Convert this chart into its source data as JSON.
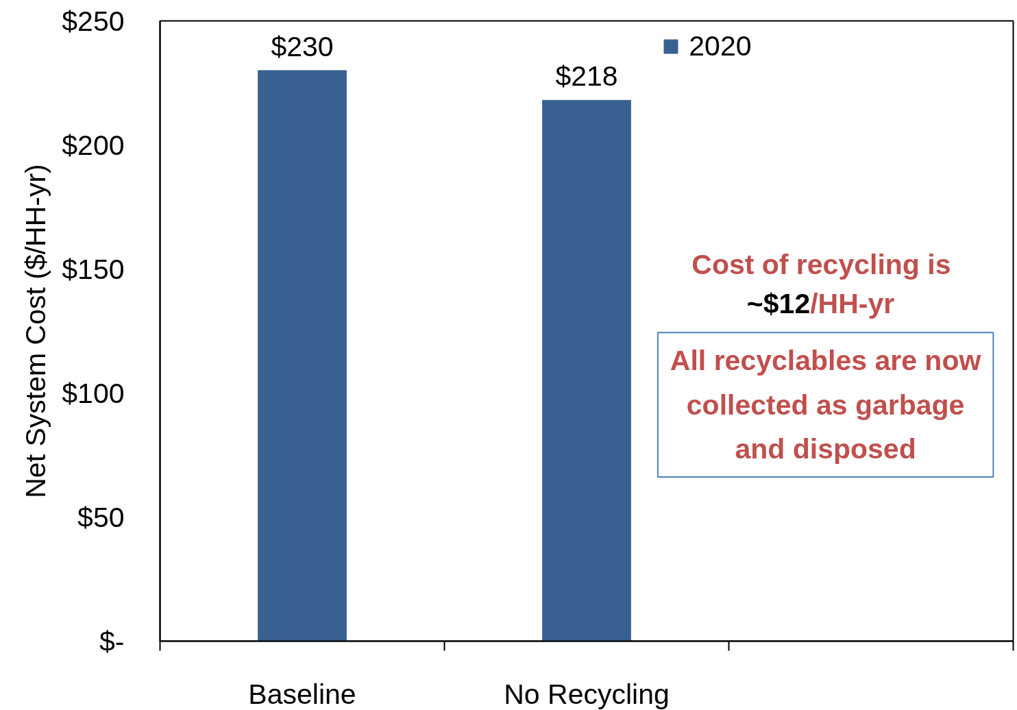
{
  "chart_data": {
    "type": "bar",
    "categories": [
      "Baseline",
      "No Recycling",
      null
    ],
    "series": [
      {
        "name": "2020",
        "color": "#386192",
        "values": [
          230,
          218,
          null
        ],
        "value_labels": [
          "$230",
          "$218",
          null
        ]
      }
    ],
    "ylabel": "Net System Cost ($/HH-yr)",
    "ylim": [
      0,
      250
    ],
    "yticks": [
      {
        "value": 0,
        "label": "$-"
      },
      {
        "value": 50,
        "label": "$50"
      },
      {
        "value": 100,
        "label": "$100"
      },
      {
        "value": 150,
        "label": "$150"
      },
      {
        "value": 200,
        "label": "$200"
      },
      {
        "value": 250,
        "label": "$250"
      }
    ],
    "legend": "top right",
    "grid": false,
    "annotations": [
      "Cost of recycling is",
      "~$12",
      "/HH-yr",
      "All recyclables are now collected as garbage and disposed"
    ]
  }
}
